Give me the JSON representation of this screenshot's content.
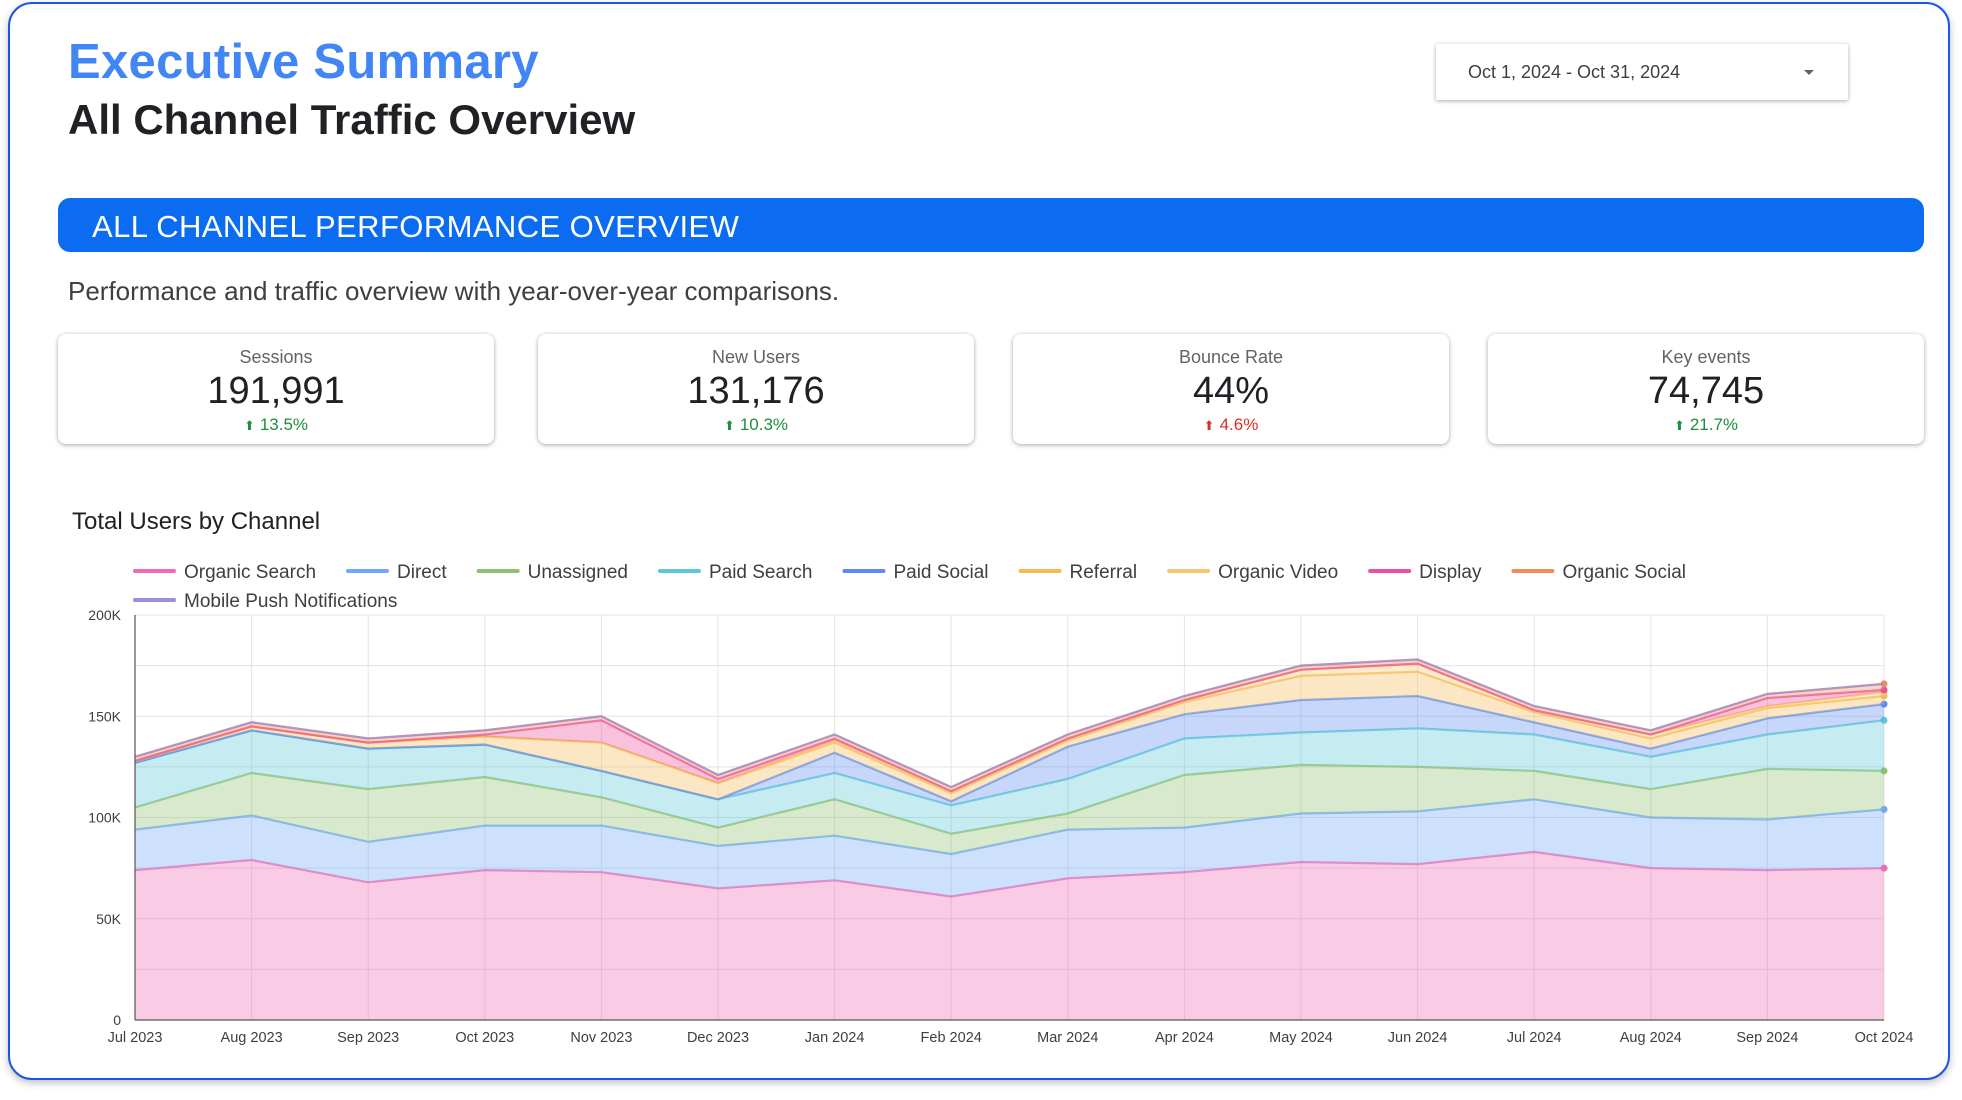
{
  "header": {
    "title": "Executive Summary",
    "subtitle": "All Channel Traffic Overview",
    "date_range": "Oct 1, 2024 - Oct 31, 2024"
  },
  "banner": {
    "text": "ALL CHANNEL PERFORMANCE OVERVIEW",
    "description": "Performance and traffic overview with year-over-year comparisons."
  },
  "kpis": [
    {
      "label": "Sessions",
      "value": "191,991",
      "delta": "13.5%",
      "direction": "up",
      "delta_color": "#1e8e3e"
    },
    {
      "label": "New Users",
      "value": "131,176",
      "delta": "10.3%",
      "direction": "up",
      "delta_color": "#1e8e3e"
    },
    {
      "label": "Bounce Rate",
      "value": "44%",
      "delta": "4.6%",
      "direction": "up",
      "delta_color": "#d93025"
    },
    {
      "label": "Key events",
      "value": "74,745",
      "delta": "21.7%",
      "direction": "up",
      "delta_color": "#1e8e3e"
    }
  ],
  "colors": {
    "title_accent": "#4285f4",
    "banner": "#0b6cf2",
    "positive": "#1e8e3e",
    "negative": "#d93025"
  },
  "icons": {
    "delta": "arrow-up-icon",
    "date_dropdown": "caret-down-icon"
  },
  "chart_data": {
    "type": "area",
    "stacked": true,
    "title": "Total Users by Channel",
    "x": [
      "Jul 2023",
      "Aug 2023",
      "Sep 2023",
      "Oct 2023",
      "Nov 2023",
      "Dec 2023",
      "Jan 2024",
      "Feb 2024",
      "Mar 2024",
      "Apr 2024",
      "May 2024",
      "Jun 2024",
      "Jul 2024",
      "Aug 2024",
      "Sep 2024",
      "Oct 2024"
    ],
    "ylim": [
      0,
      200000
    ],
    "yticks": [
      0,
      50000,
      100000,
      150000,
      200000
    ],
    "ytick_labels": [
      "0",
      "50K",
      "100K",
      "150K",
      "200K"
    ],
    "grid": true,
    "legend_position": "top-left",
    "series": [
      {
        "name": "Organic Search",
        "color": "#f06bb4",
        "values": [
          74000,
          79000,
          68000,
          74000,
          73000,
          65000,
          69000,
          61000,
          70000,
          73000,
          78000,
          77000,
          83000,
          75000,
          74000,
          75000
        ]
      },
      {
        "name": "Direct",
        "color": "#6fa8f5",
        "values": [
          20000,
          22000,
          20000,
          22000,
          23000,
          21000,
          22000,
          21000,
          24000,
          22000,
          24000,
          26000,
          26000,
          25000,
          25000,
          29000
        ]
      },
      {
        "name": "Unassigned",
        "color": "#8fbf6f",
        "values": [
          11000,
          21000,
          26000,
          24000,
          14000,
          9000,
          18000,
          10000,
          8000,
          26000,
          24000,
          22000,
          14000,
          14000,
          25000,
          19000
        ]
      },
      {
        "name": "Paid Search",
        "color": "#5cc7d8",
        "values": [
          22000,
          21000,
          20000,
          16000,
          13000,
          14000,
          13000,
          14000,
          17000,
          18000,
          16000,
          19000,
          18000,
          16000,
          17000,
          25000
        ]
      },
      {
        "name": "Paid Social",
        "color": "#5b8cf0",
        "values": [
          0,
          0,
          0,
          0,
          0,
          0,
          10000,
          2000,
          16000,
          12000,
          16000,
          16000,
          6000,
          4000,
          8000,
          8000
        ]
      },
      {
        "name": "Referral",
        "color": "#f7b955",
        "values": [
          1000,
          2000,
          3000,
          4000,
          14000,
          8000,
          5000,
          4000,
          3000,
          6000,
          12000,
          12000,
          5000,
          5000,
          5000,
          4000
        ]
      },
      {
        "name": "Organic Video",
        "color": "#f9c56a",
        "values": [
          0,
          0,
          0,
          0,
          0,
          0,
          1000,
          1000,
          1000,
          1000,
          3000,
          4000,
          1000,
          2000,
          1000,
          2000
        ]
      },
      {
        "name": "Display",
        "color": "#ec4f9b",
        "values": [
          0,
          0,
          0,
          1000,
          11000,
          2000,
          1000,
          0,
          0,
          0,
          0,
          0,
          0,
          0,
          4000,
          1000
        ]
      },
      {
        "name": "Organic Social",
        "color": "#f28b5a",
        "values": [
          2000,
          2000,
          2000,
          2000,
          2000,
          2000,
          2000,
          2000,
          2000,
          2000,
          2000,
          2000,
          2000,
          2000,
          2000,
          3000
        ]
      },
      {
        "name": "Mobile Push Notifications",
        "color": "#9a8fdb",
        "values": [
          0,
          0,
          0,
          0,
          0,
          0,
          0,
          0,
          0,
          0,
          0,
          0,
          0,
          0,
          0,
          0
        ]
      }
    ]
  }
}
